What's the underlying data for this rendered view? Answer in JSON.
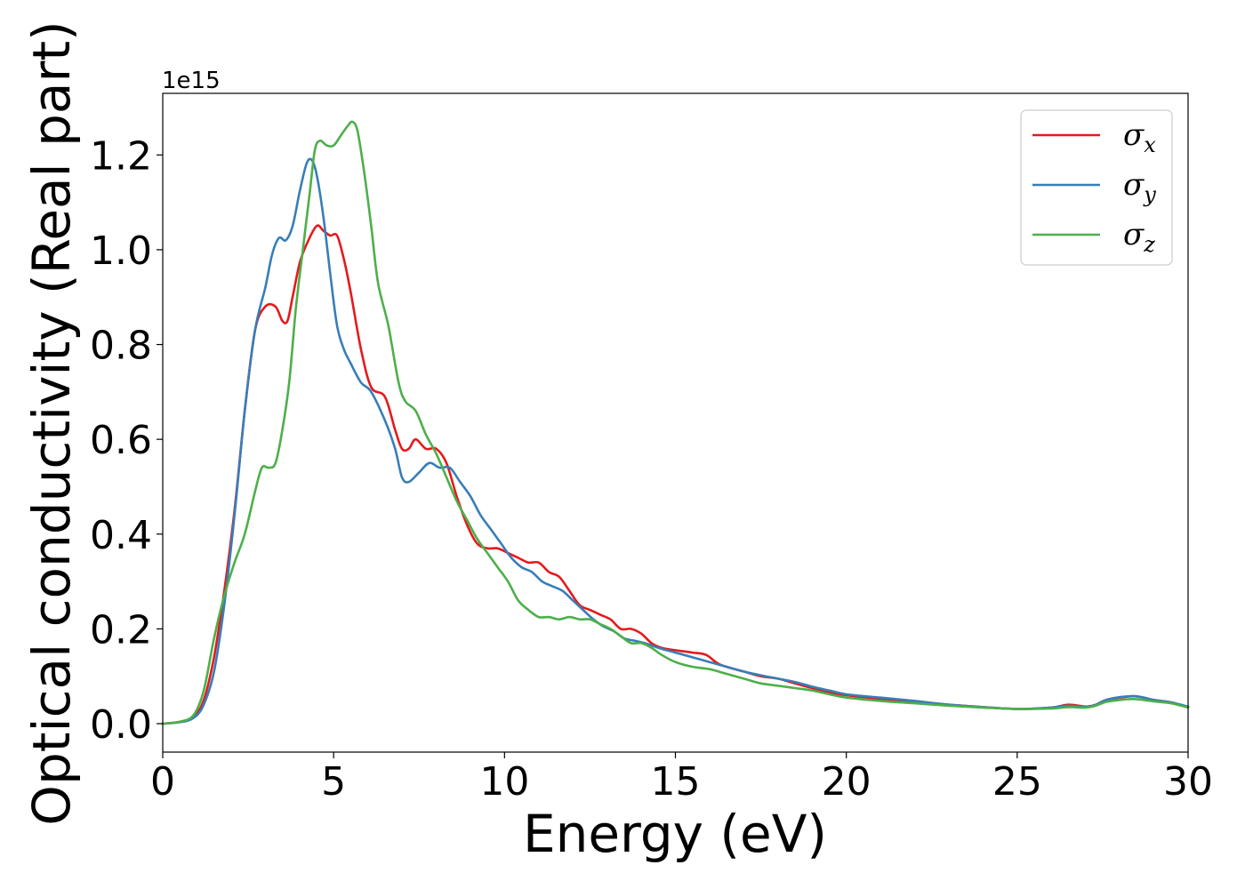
{
  "chart_data": {
    "type": "line",
    "xlabel": "Energy (eV)",
    "ylabel": "Optical conductivity (Real part)",
    "y_offset_label": "1e15",
    "xlim": [
      0,
      30
    ],
    "ylim": [
      -0.06,
      1.33
    ],
    "x_ticks": [
      0,
      5,
      10,
      15,
      20,
      25,
      30
    ],
    "x_tick_labels": [
      "0",
      "5",
      "10",
      "15",
      "20",
      "25",
      "30"
    ],
    "y_ticks": [
      0.0,
      0.2,
      0.4,
      0.6,
      0.8,
      1.0,
      1.2
    ],
    "y_tick_labels": [
      "0.0",
      "0.2",
      "0.4",
      "0.6",
      "0.8",
      "1.0",
      "1.2"
    ],
    "grid": false,
    "legend_position": "top-right",
    "series": [
      {
        "name": "σ",
        "subscript": "x",
        "color": "#e41a1c",
        "x": [
          0,
          0.5,
          0.9,
          1.2,
          1.5,
          1.8,
          2.1,
          2.4,
          2.7,
          3.0,
          3.3,
          3.5,
          3.65,
          3.8,
          4.0,
          4.2,
          4.5,
          4.7,
          4.9,
          5.1,
          5.3,
          5.5,
          5.8,
          6.1,
          6.5,
          6.8,
          7.0,
          7.2,
          7.4,
          7.7,
          8.0,
          8.3,
          8.6,
          8.9,
          9.2,
          9.5,
          9.8,
          10.1,
          10.4,
          10.7,
          11.0,
          11.3,
          11.6,
          11.9,
          12.2,
          12.5,
          12.8,
          13.1,
          13.4,
          13.7,
          14.0,
          14.3,
          14.6,
          15.0,
          15.5,
          15.9,
          16.3,
          17.0,
          17.5,
          18.0,
          18.5,
          19.0,
          19.5,
          20.0,
          21.0,
          22.0,
          23.0,
          24.0,
          25.0,
          26.0,
          26.5,
          27.0,
          27.3,
          27.6,
          28.0,
          28.4,
          28.7,
          29.0,
          29.5,
          30.0
        ],
        "y": [
          0.0,
          0.004,
          0.015,
          0.05,
          0.14,
          0.28,
          0.45,
          0.66,
          0.83,
          0.88,
          0.88,
          0.85,
          0.85,
          0.9,
          0.97,
          1.01,
          1.05,
          1.04,
          1.03,
          1.03,
          0.98,
          0.91,
          0.79,
          0.71,
          0.69,
          0.62,
          0.58,
          0.58,
          0.6,
          0.58,
          0.58,
          0.55,
          0.48,
          0.42,
          0.38,
          0.37,
          0.37,
          0.36,
          0.35,
          0.34,
          0.34,
          0.32,
          0.31,
          0.28,
          0.25,
          0.24,
          0.23,
          0.22,
          0.2,
          0.2,
          0.19,
          0.17,
          0.16,
          0.155,
          0.15,
          0.145,
          0.125,
          0.11,
          0.1,
          0.095,
          0.085,
          0.075,
          0.066,
          0.06,
          0.052,
          0.046,
          0.04,
          0.035,
          0.031,
          0.034,
          0.04,
          0.036,
          0.04,
          0.05,
          0.055,
          0.058,
          0.055,
          0.05,
          0.045,
          0.035
        ]
      },
      {
        "name": "σ",
        "subscript": "y",
        "color": "#377eb8",
        "x": [
          0,
          0.5,
          0.9,
          1.2,
          1.5,
          1.8,
          2.1,
          2.4,
          2.7,
          3.0,
          3.2,
          3.4,
          3.6,
          3.8,
          4.0,
          4.2,
          4.35,
          4.5,
          4.7,
          4.9,
          5.1,
          5.3,
          5.5,
          5.8,
          6.1,
          6.5,
          6.8,
          7.0,
          7.2,
          7.5,
          7.8,
          8.1,
          8.4,
          8.7,
          9.0,
          9.3,
          9.6,
          9.9,
          10.2,
          10.5,
          10.8,
          11.1,
          11.4,
          11.7,
          12.0,
          12.3,
          12.6,
          12.9,
          13.2,
          13.5,
          13.8,
          14.1,
          14.5,
          15.0,
          15.5,
          16.0,
          16.5,
          17.0,
          17.5,
          18.0,
          18.5,
          19.0,
          19.5,
          20.0,
          21.0,
          22.0,
          23.0,
          24.0,
          25.0,
          26.0,
          26.5,
          27.0,
          27.3,
          27.6,
          28.0,
          28.4,
          28.7,
          29.0,
          29.5,
          30.0
        ],
        "y": [
          0.0,
          0.003,
          0.012,
          0.04,
          0.11,
          0.25,
          0.44,
          0.66,
          0.83,
          0.92,
          0.99,
          1.025,
          1.02,
          1.05,
          1.12,
          1.18,
          1.19,
          1.16,
          1.07,
          0.95,
          0.84,
          0.79,
          0.76,
          0.72,
          0.7,
          0.64,
          0.58,
          0.52,
          0.51,
          0.53,
          0.55,
          0.54,
          0.54,
          0.51,
          0.48,
          0.44,
          0.41,
          0.38,
          0.35,
          0.33,
          0.32,
          0.3,
          0.29,
          0.28,
          0.26,
          0.24,
          0.22,
          0.205,
          0.195,
          0.18,
          0.175,
          0.17,
          0.16,
          0.15,
          0.14,
          0.13,
          0.12,
          0.11,
          0.102,
          0.095,
          0.088,
          0.078,
          0.07,
          0.062,
          0.055,
          0.048,
          0.04,
          0.035,
          0.031,
          0.034,
          0.038,
          0.035,
          0.04,
          0.05,
          0.056,
          0.058,
          0.055,
          0.05,
          0.045,
          0.036
        ]
      },
      {
        "name": "σ",
        "subscript": "z",
        "color": "#4daf4a",
        "x": [
          0,
          0.5,
          0.9,
          1.2,
          1.5,
          1.8,
          2.1,
          2.4,
          2.7,
          2.9,
          3.1,
          3.3,
          3.5,
          3.7,
          3.9,
          4.1,
          4.3,
          4.45,
          4.6,
          4.8,
          5.0,
          5.2,
          5.4,
          5.55,
          5.7,
          5.9,
          6.1,
          6.3,
          6.6,
          6.9,
          7.1,
          7.4,
          7.7,
          8.0,
          8.3,
          8.6,
          8.9,
          9.2,
          9.5,
          9.8,
          10.1,
          10.4,
          10.7,
          11.0,
          11.3,
          11.6,
          11.9,
          12.2,
          12.5,
          12.8,
          13.1,
          13.4,
          13.7,
          14.0,
          14.3,
          14.6,
          15.0,
          15.5,
          16.0,
          16.5,
          17.0,
          17.5,
          18.0,
          18.5,
          19.0,
          19.5,
          20.0,
          21.0,
          22.0,
          23.0,
          24.0,
          25.0,
          26.0,
          26.5,
          27.0,
          27.3,
          27.6,
          28.0,
          28.4,
          28.7,
          29.0,
          29.5,
          30.0
        ],
        "y": [
          0.0,
          0.004,
          0.018,
          0.07,
          0.18,
          0.27,
          0.34,
          0.4,
          0.49,
          0.54,
          0.54,
          0.55,
          0.62,
          0.72,
          0.88,
          1.0,
          1.12,
          1.21,
          1.23,
          1.22,
          1.22,
          1.24,
          1.26,
          1.27,
          1.25,
          1.16,
          1.05,
          0.93,
          0.84,
          0.72,
          0.68,
          0.66,
          0.61,
          0.57,
          0.52,
          0.47,
          0.43,
          0.39,
          0.36,
          0.33,
          0.3,
          0.26,
          0.24,
          0.225,
          0.225,
          0.22,
          0.225,
          0.22,
          0.22,
          0.21,
          0.2,
          0.185,
          0.17,
          0.17,
          0.16,
          0.145,
          0.13,
          0.12,
          0.115,
          0.105,
          0.095,
          0.085,
          0.08,
          0.075,
          0.07,
          0.062,
          0.055,
          0.048,
          0.043,
          0.038,
          0.034,
          0.031,
          0.032,
          0.035,
          0.034,
          0.038,
          0.046,
          0.05,
          0.052,
          0.05,
          0.047,
          0.043,
          0.034
        ]
      }
    ]
  }
}
